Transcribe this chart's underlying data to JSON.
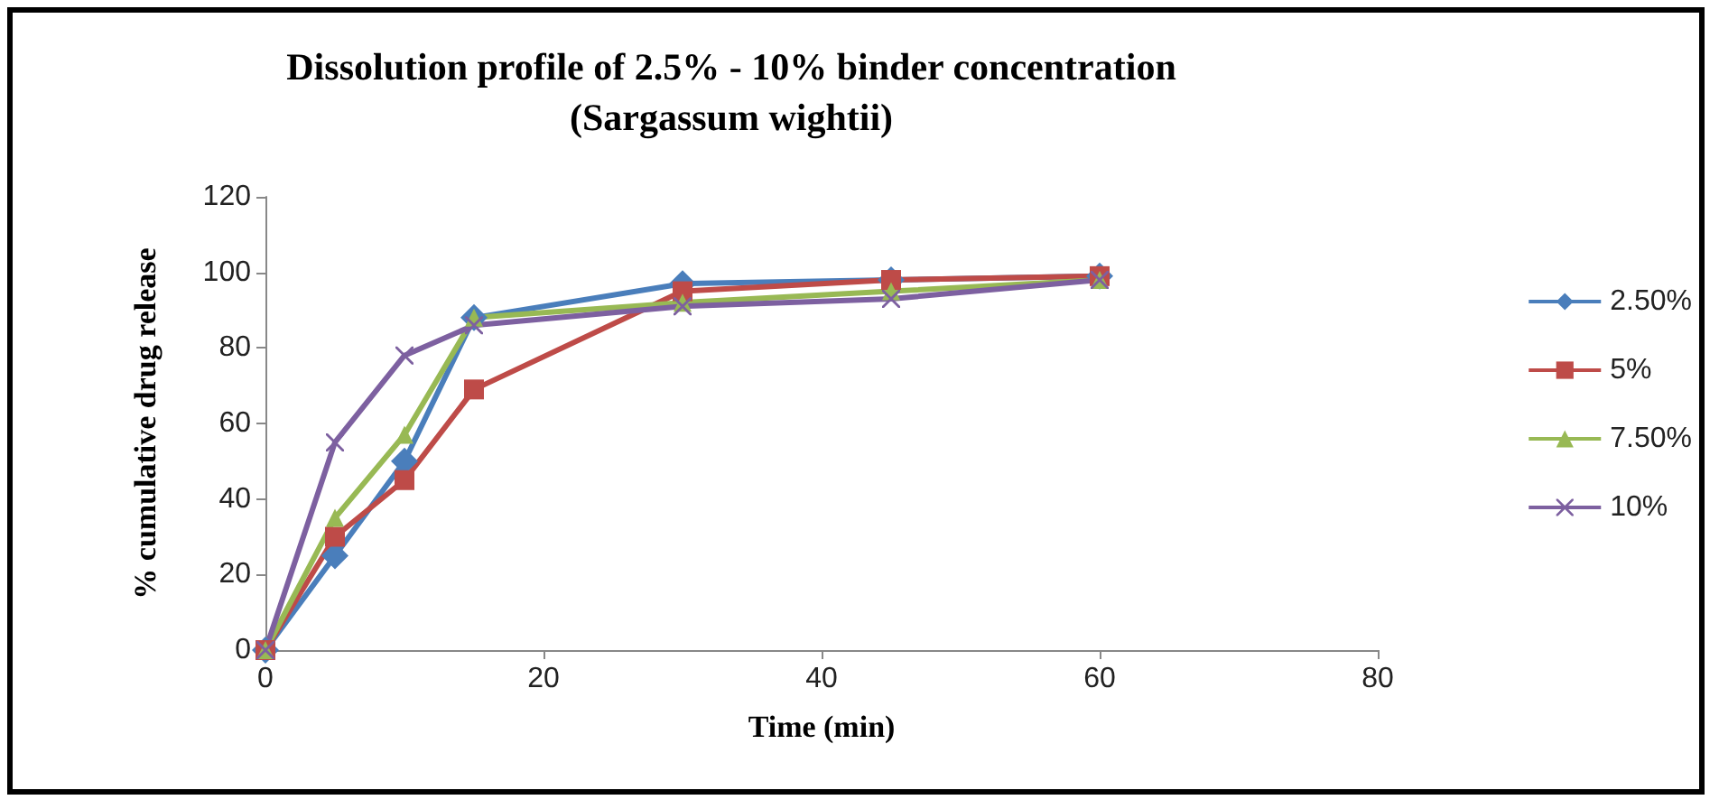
{
  "chart_data": {
    "type": "line",
    "title": "Dissolution profile of 2.5% - 10% binder concentration\n(Sargassum wightii)",
    "xlabel": "Time (min)",
    "ylabel": "% cumulative drug release",
    "x": [
      0,
      5,
      10,
      15,
      30,
      45,
      60
    ],
    "xlim": [
      0,
      80
    ],
    "xticks": [
      0,
      20,
      40,
      60,
      80
    ],
    "ylim": [
      0,
      120
    ],
    "yticks": [
      0,
      20,
      40,
      60,
      80,
      100,
      120
    ],
    "grid": false,
    "legend": "right",
    "series": [
      {
        "name": "2.50%",
        "color": "#4a7ebb",
        "marker": "diamond",
        "values": [
          0,
          25,
          50,
          88,
          97,
          98,
          99
        ]
      },
      {
        "name": "5%",
        "color": "#be4b48",
        "marker": "square",
        "values": [
          0,
          30,
          45,
          69,
          95,
          98,
          99
        ]
      },
      {
        "name": "7.50%",
        "color": "#98b954",
        "marker": "triangle",
        "values": [
          0,
          35,
          57,
          88,
          92,
          95,
          98
        ]
      },
      {
        "name": "10%",
        "color": "#7d60a0",
        "marker": "cross",
        "values": [
          0,
          55,
          78,
          86,
          91,
          93,
          98
        ]
      }
    ]
  }
}
